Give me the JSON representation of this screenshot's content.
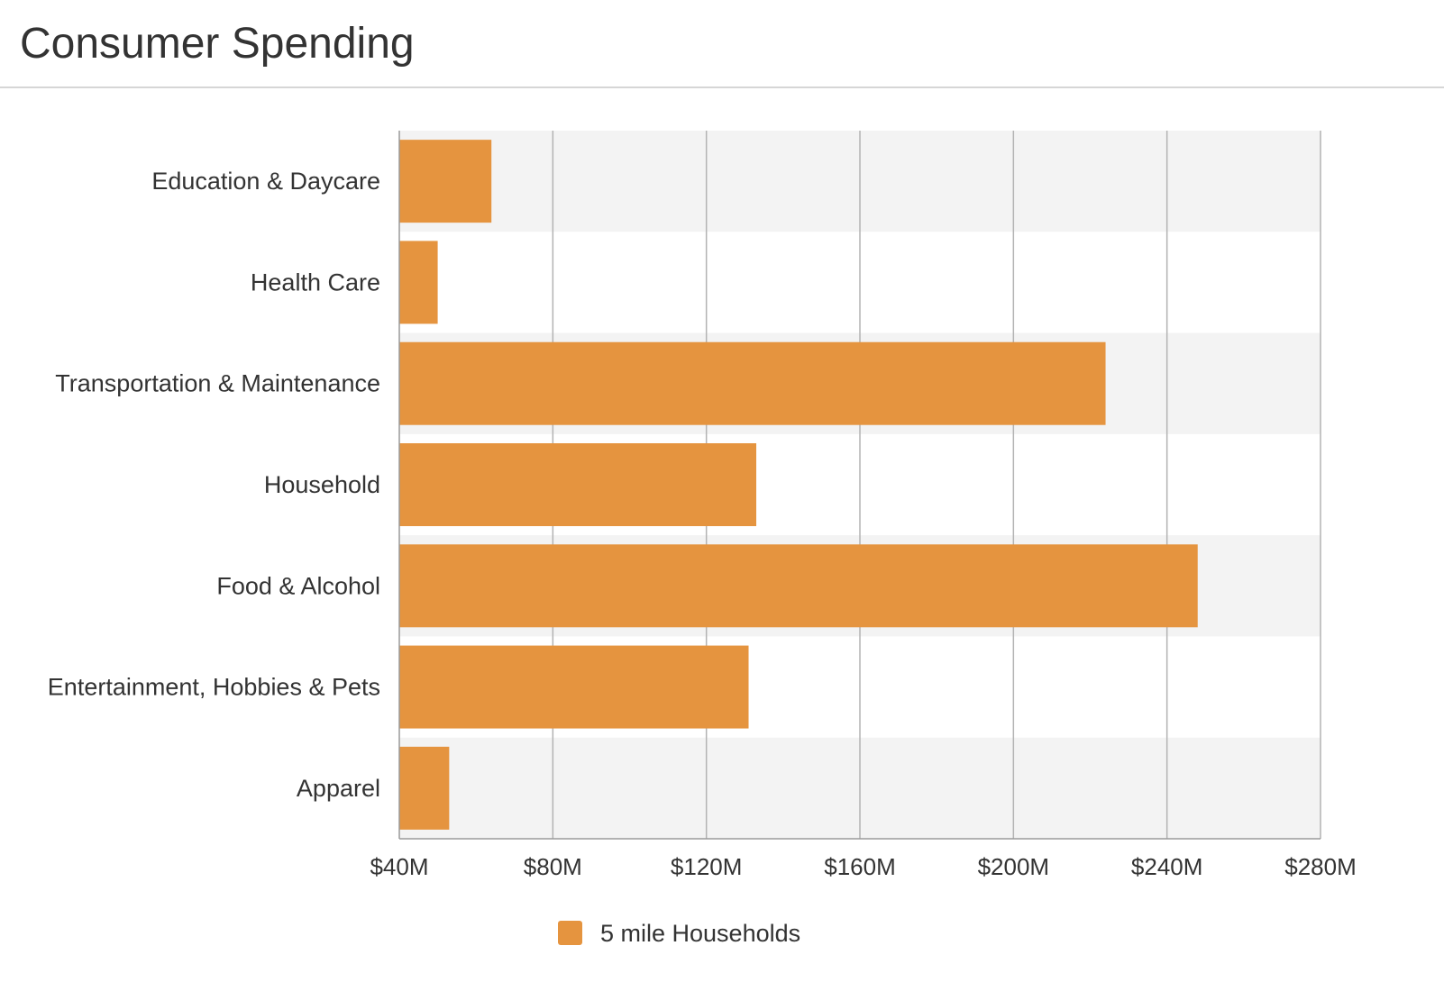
{
  "header": {
    "title": "Consumer Spending"
  },
  "chart_data": {
    "type": "bar",
    "orientation": "horizontal",
    "categories": [
      "Education & Daycare",
      "Health Care",
      "Transportation & Maintenance",
      "Household",
      "Food & Alcohol",
      "Entertainment, Hobbies & Pets",
      "Apparel"
    ],
    "series": [
      {
        "name": "5 mile Households",
        "color": "#e5943f",
        "values": [
          64,
          50,
          224,
          133,
          248,
          131,
          53
        ]
      }
    ],
    "xlim": [
      40,
      280
    ],
    "x_ticks": [
      40,
      80,
      120,
      160,
      200,
      240,
      280
    ],
    "x_tick_labels": [
      "$40M",
      "$80M",
      "$120M",
      "$160M",
      "$200M",
      "$240M",
      "$280M"
    ],
    "xlabel": "",
    "ylabel": "",
    "grid": true,
    "legend_position": "bottom-center",
    "band_color": "#f3f3f3"
  }
}
